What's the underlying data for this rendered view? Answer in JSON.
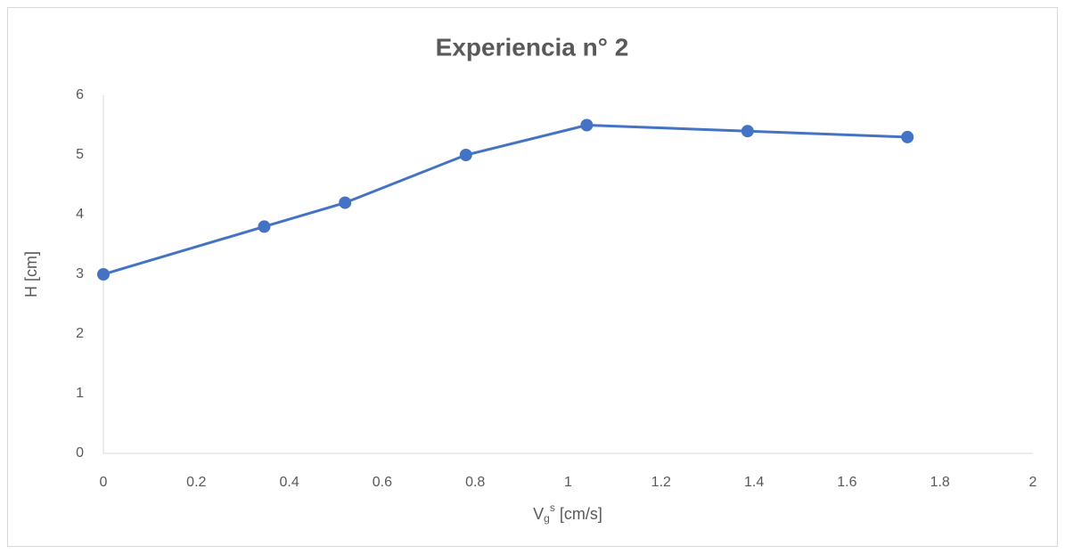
{
  "chart_data": {
    "type": "line",
    "title": "Experiencia n° 2",
    "x_label": [
      "V",
      "g",
      "s",
      " [cm/s]"
    ],
    "y_label": "H [cm]",
    "x": [
      0,
      0.346,
      0.52,
      0.78,
      1.04,
      1.386,
      1.73
    ],
    "series": [
      {
        "name": "H",
        "color": "#4472c4",
        "values": [
          3,
          3.8,
          4.2,
          5,
          5.5,
          5.4,
          5.3
        ]
      }
    ],
    "xlim": [
      0,
      2
    ],
    "xticks": [
      0,
      0.2,
      0.4,
      0.6,
      0.8,
      1,
      1.2,
      1.4,
      1.6,
      1.8,
      2
    ],
    "ylim": [
      0,
      6
    ],
    "yticks": [
      0,
      1,
      2,
      3,
      4,
      5,
      6
    ],
    "grid": false,
    "markers": true
  }
}
